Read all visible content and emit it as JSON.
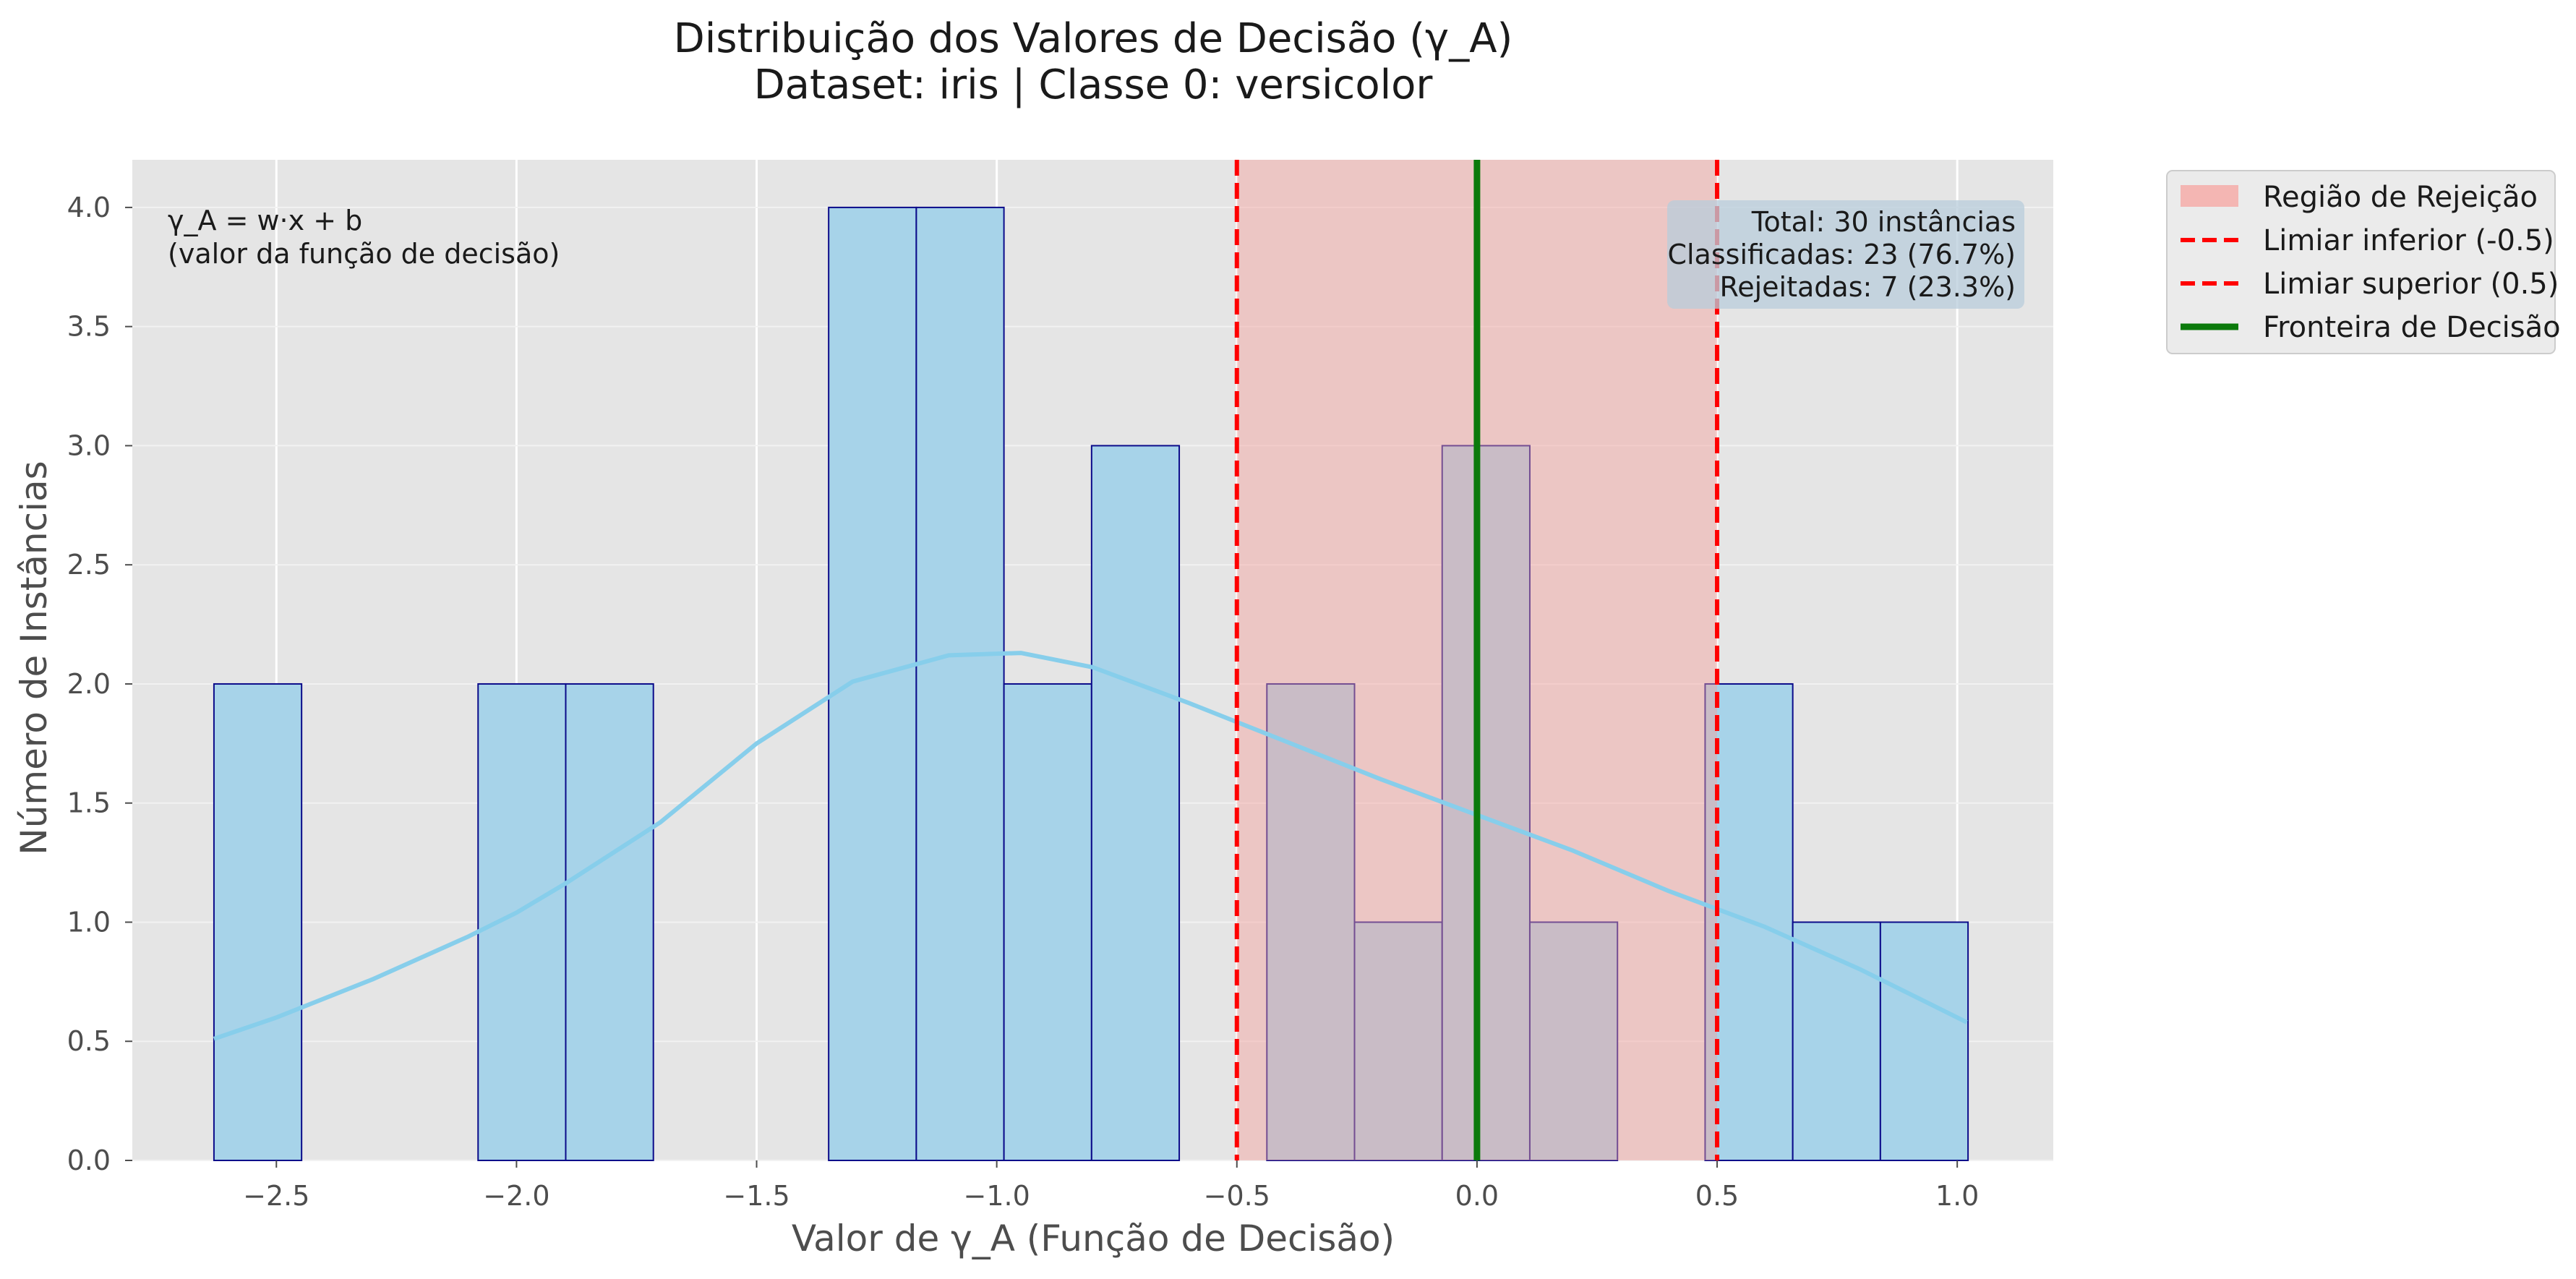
{
  "chart_data": {
    "type": "bar",
    "title": "Distribuição dos Valores de Decisão (γ_A)",
    "subtitle": "Dataset: iris | Classe 0: versicolor",
    "xlabel": "Valor de γ_A (Função de Decisão)",
    "ylabel": "Número de Instâncias",
    "xlim": [
      -2.8,
      1.2
    ],
    "ylim": [
      0,
      4.2
    ],
    "x_ticks": [
      -2.5,
      -2.0,
      -1.5,
      -1.0,
      -0.5,
      0.0,
      0.5,
      1.0
    ],
    "x_tick_labels": [
      "−2.5",
      "−2.0",
      "−1.5",
      "−1.0",
      "−0.5",
      "0.0",
      "0.5",
      "1.0"
    ],
    "y_ticks": [
      0,
      0.5,
      1.0,
      1.5,
      2.0,
      2.5,
      3.0,
      3.5,
      4.0
    ],
    "y_tick_labels": [
      "0.0",
      "0.5",
      "1.0",
      "1.5",
      "2.0",
      "2.5",
      "3.0",
      "3.5",
      "4.0"
    ],
    "grid": true,
    "background": "#e5e5e5",
    "bars": {
      "bin_width": 0.1825,
      "fill": "#a7d3e9",
      "edge": "#0b0b8a",
      "bins": [
        {
          "x0": -2.63,
          "x1": -2.4475,
          "count": 2
        },
        {
          "x0": -2.08,
          "x1": -1.8975,
          "count": 2
        },
        {
          "x0": -1.8975,
          "x1": -1.715,
          "count": 2
        },
        {
          "x0": -1.35,
          "x1": -1.1675,
          "count": 4
        },
        {
          "x0": -1.1675,
          "x1": -0.985,
          "count": 4
        },
        {
          "x0": -0.985,
          "x1": -0.8025,
          "count": 2
        },
        {
          "x0": -0.8025,
          "x1": -0.62,
          "count": 3
        },
        {
          "x0": -0.4375,
          "x1": -0.255,
          "count": 2
        },
        {
          "x0": -0.255,
          "x1": -0.0725,
          "count": 1
        },
        {
          "x0": -0.0725,
          "x1": 0.11,
          "count": 3
        },
        {
          "x0": 0.11,
          "x1": 0.2925,
          "count": 1
        },
        {
          "x0": 0.475,
          "x1": 0.6575,
          "count": 2
        },
        {
          "x0": 0.6575,
          "x1": 0.84,
          "count": 1
        },
        {
          "x0": 0.84,
          "x1": 1.0225,
          "count": 1
        }
      ]
    },
    "kde": {
      "color": "#87ceeb",
      "x": [
        -2.63,
        -2.5,
        -2.3,
        -2.1,
        -2.0,
        -1.9,
        -1.7,
        -1.5,
        -1.3,
        -1.1,
        -0.95,
        -0.8,
        -0.6,
        -0.4,
        -0.2,
        0.0,
        0.2,
        0.4,
        0.6,
        0.8,
        1.02
      ],
      "y": [
        0.51,
        0.6,
        0.76,
        0.94,
        1.04,
        1.16,
        1.42,
        1.75,
        2.01,
        2.12,
        2.13,
        2.07,
        1.92,
        1.76,
        1.6,
        1.45,
        1.3,
        1.13,
        0.98,
        0.8,
        0.58
      ]
    },
    "rejection_region": {
      "x0": -0.5,
      "x1": 0.5,
      "color": "#f4a09c"
    },
    "lines": [
      {
        "name": "Limiar inferior (-0.5)",
        "x": -0.5,
        "color": "#ff0000",
        "style": "dashed"
      },
      {
        "name": "Limiar superior (0.5)",
        "x": 0.5,
        "color": "#ff0000",
        "style": "dashed"
      },
      {
        "name": "Fronteira de Decisão",
        "x": 0.0,
        "color": "#0b7a0b",
        "style": "solid"
      }
    ],
    "legend": {
      "position": "outside-top-right",
      "entries": [
        {
          "label": "Região de Rejeição",
          "kind": "patch",
          "color": "#f4b6b3"
        },
        {
          "label": "Limiar inferior (-0.5)",
          "kind": "dashed",
          "color": "#ff0000"
        },
        {
          "label": "Limiar superior (0.5)",
          "kind": "dashed",
          "color": "#ff0000"
        },
        {
          "label": "Fronteira de Decisão",
          "kind": "solid",
          "color": "#0b7a0b"
        }
      ]
    },
    "annotations": {
      "formula_line1": "γ_A = w·x + b",
      "formula_line2": "(valor da função de decisão)",
      "stats": [
        "Total: 30 instâncias",
        "Classificadas: 23 (76.7%)",
        "Rejeitadas: 7 (23.3%)"
      ]
    }
  }
}
